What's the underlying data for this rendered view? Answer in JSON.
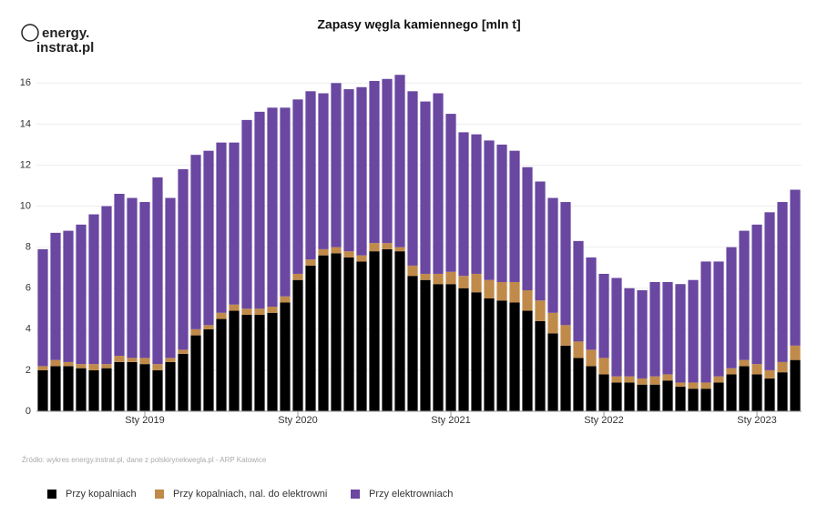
{
  "logo": [
    "energy.",
    "instrat.pl"
  ],
  "source": "Źródło: wykres energy.instrat.pl, dane z polskirynekwegla.pl - ARP Katowice",
  "chart_data": {
    "type": "stacked_bar",
    "title": "Zapasy węgla kamiennego [mln t]",
    "categories": [
      null,
      null,
      null,
      null,
      null,
      null,
      null,
      null,
      "Sty 2019",
      null,
      null,
      null,
      null,
      null,
      null,
      null,
      null,
      null,
      null,
      null,
      "Sty 2020",
      null,
      null,
      null,
      null,
      null,
      null,
      null,
      null,
      null,
      null,
      null,
      "Sty 2021",
      null,
      null,
      null,
      null,
      null,
      null,
      null,
      null,
      null,
      null,
      null,
      "Sty 2022",
      null,
      null,
      null,
      null,
      null,
      null,
      null,
      null,
      null,
      null,
      null,
      "Sty 2023",
      null,
      null,
      null
    ],
    "series": [
      {
        "name": "Przy kopalniach",
        "color": "#000000",
        "values": [
          2.0,
          2.2,
          2.2,
          2.1,
          2.0,
          2.1,
          2.4,
          2.4,
          2.3,
          2.0,
          2.4,
          2.8,
          3.7,
          4.0,
          4.5,
          4.9,
          4.7,
          4.7,
          4.8,
          5.3,
          6.4,
          7.1,
          7.6,
          7.7,
          7.5,
          7.3,
          7.8,
          7.9,
          7.8,
          6.6,
          6.4,
          6.2,
          6.2,
          6.0,
          5.8,
          5.5,
          5.4,
          5.3,
          4.9,
          4.4,
          3.8,
          3.2,
          2.6,
          2.2,
          1.8,
          1.4,
          1.4,
          1.3,
          1.3,
          1.5,
          1.2,
          1.1,
          1.1,
          1.4,
          1.8,
          2.2,
          1.8,
          1.6,
          1.9,
          2.5
        ]
      },
      {
        "name": "Przy kopalniach, nal. do elektrowni",
        "color": "#c08a4a",
        "values": [
          0.2,
          0.3,
          0.2,
          0.2,
          0.3,
          0.2,
          0.3,
          0.2,
          0.3,
          0.3,
          0.2,
          0.2,
          0.3,
          0.2,
          0.3,
          0.3,
          0.3,
          0.3,
          0.3,
          0.3,
          0.3,
          0.3,
          0.3,
          0.3,
          0.3,
          0.3,
          0.4,
          0.3,
          0.2,
          0.5,
          0.3,
          0.5,
          0.6,
          0.6,
          0.9,
          0.9,
          0.9,
          1.0,
          1.0,
          1.0,
          1.0,
          1.0,
          0.8,
          0.8,
          0.8,
          0.3,
          0.3,
          0.3,
          0.4,
          0.3,
          0.2,
          0.3,
          0.3,
          0.3,
          0.3,
          0.3,
          0.5,
          0.4,
          0.5,
          0.7
        ]
      },
      {
        "name": "Przy elektrowniach",
        "color": "#6a47a1",
        "values": [
          5.7,
          6.2,
          6.4,
          6.8,
          7.3,
          7.7,
          7.9,
          7.8,
          7.6,
          9.1,
          7.8,
          8.8,
          8.5,
          8.5,
          8.3,
          7.9,
          9.2,
          9.6,
          9.7,
          9.2,
          8.5,
          8.2,
          7.6,
          8.0,
          7.9,
          8.2,
          7.9,
          8.0,
          8.4,
          8.5,
          8.4,
          8.8,
          7.7,
          7.0,
          6.8,
          6.8,
          6.7,
          6.4,
          6.0,
          5.8,
          5.6,
          6.0,
          4.9,
          4.5,
          4.1,
          4.8,
          4.3,
          4.3,
          4.6,
          4.5,
          4.8,
          5.0,
          5.9,
          5.6,
          5.9,
          6.3,
          6.8,
          7.7,
          7.8,
          7.6
        ]
      }
    ],
    "ylim": [
      0,
      16.5
    ],
    "yticks": [
      0,
      2,
      4,
      6,
      8,
      10,
      12,
      14,
      16
    ],
    "grid": true
  }
}
